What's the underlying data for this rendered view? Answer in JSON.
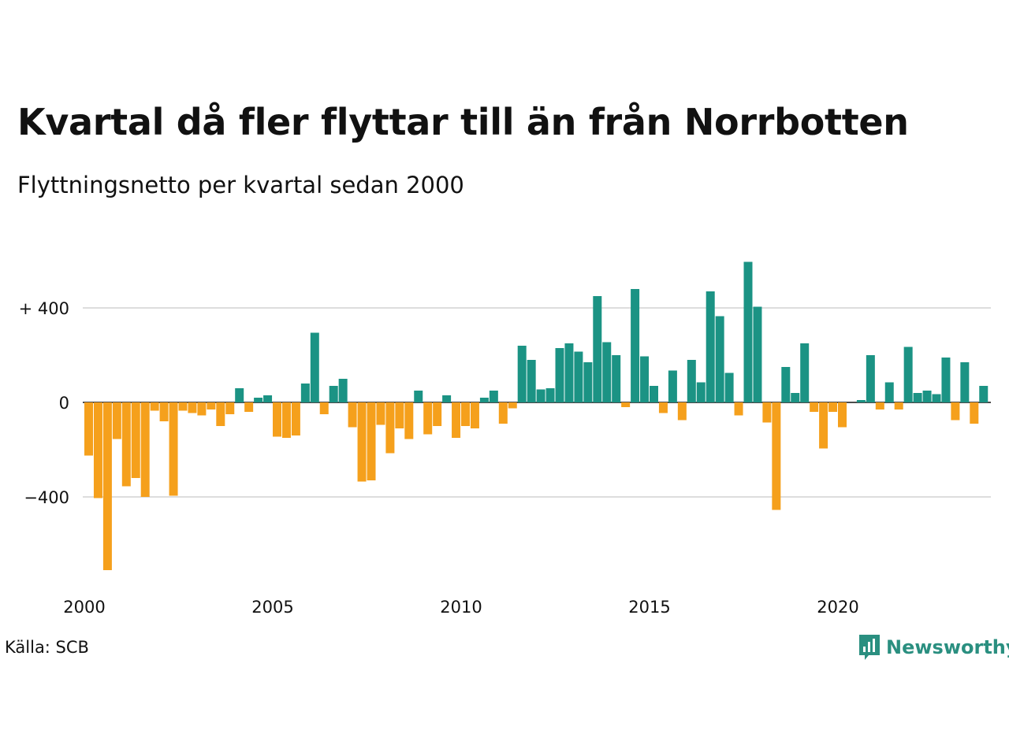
{
  "title": "Kvartal då fler flyttar till än från Norrbotten",
  "subtitle": "Flyttningsnetto per kvartal sedan 2000",
  "source": "Källa: SCB",
  "brand": "Newsworthy",
  "colors": {
    "positive": "#1b9384",
    "negative": "#f5a01c",
    "grid": "#dddddd",
    "brand": "#2a8f80"
  },
  "chart_data": {
    "type": "bar",
    "x_start": "2000 Q1",
    "ylim": [
      -720,
      600
    ],
    "y_ticks": [
      {
        "value": 400,
        "label": "+ 400"
      },
      {
        "value": 0,
        "label": "0"
      },
      {
        "value": -400,
        "label": "−400"
      }
    ],
    "x_ticks": [
      {
        "year": 2000,
        "label": "2000"
      },
      {
        "year": 2005,
        "label": "2005"
      },
      {
        "year": 2010,
        "label": "2010"
      },
      {
        "year": 2015,
        "label": "2015"
      },
      {
        "year": 2020,
        "label": "2020"
      }
    ],
    "values": [
      -225,
      -405,
      -710,
      -155,
      -355,
      -320,
      -400,
      -35,
      -80,
      -395,
      -35,
      -45,
      -55,
      -30,
      -100,
      -50,
      60,
      -40,
      20,
      30,
      -145,
      -150,
      -140,
      80,
      295,
      -50,
      70,
      100,
      -105,
      -335,
      -330,
      -95,
      -215,
      -110,
      -155,
      50,
      -135,
      -100,
      30,
      -150,
      -100,
      -110,
      20,
      50,
      -90,
      -25,
      240,
      180,
      55,
      60,
      230,
      250,
      215,
      170,
      450,
      255,
      200,
      -20,
      480,
      195,
      70,
      -45,
      135,
      -75,
      180,
      85,
      470,
      365,
      125,
      -55,
      595,
      405,
      -85,
      -455,
      150,
      40,
      250,
      -40,
      -195,
      -40,
      -105,
      0,
      10,
      200,
      -30,
      85,
      -30,
      235,
      40,
      50,
      35,
      190,
      -75,
      170,
      -90,
      70
    ]
  }
}
